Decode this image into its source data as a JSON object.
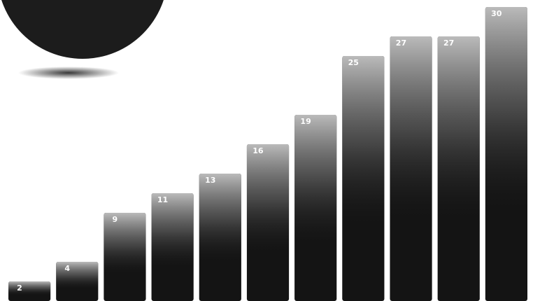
{
  "chart_data": {
    "type": "bar",
    "values": [
      2,
      4,
      9,
      11,
      13,
      16,
      19,
      25,
      27,
      27,
      30
    ],
    "color": "#141414"
  }
}
